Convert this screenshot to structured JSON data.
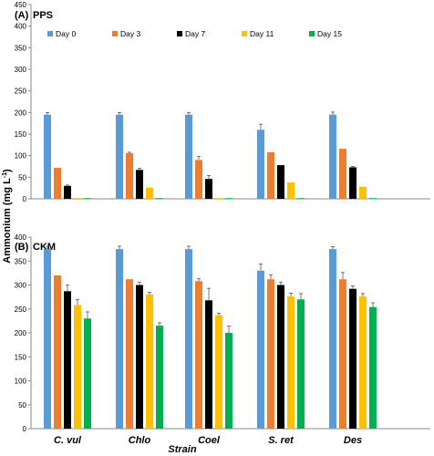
{
  "figure": {
    "ylabel": "Ammonium (mg L",
    "ylabel_sup": "-1",
    "ylabel_close": ")",
    "xlabel": "Strain"
  },
  "chart_data": [
    {
      "type": "bar",
      "panel_label": "(A)",
      "title": "PPS",
      "categories": [
        "C. vul",
        "Chlo",
        "Coel",
        "S. ret",
        "Des"
      ],
      "ylim": [
        0,
        450
      ],
      "yticks": [
        0,
        50,
        100,
        150,
        200,
        250,
        300,
        350,
        400,
        450
      ],
      "grid": false,
      "legend": "top",
      "series": [
        {
          "name": "Day 0",
          "color": "#5b9bd5",
          "values": [
            195,
            195,
            195,
            160,
            195
          ],
          "errors": [
            5,
            5,
            5,
            13,
            6
          ]
        },
        {
          "name": "Day 3",
          "color": "#ed7d31",
          "values": [
            72,
            106,
            90,
            108,
            116
          ],
          "errors": [
            0,
            2,
            8,
            0,
            0
          ]
        },
        {
          "name": "Day 7",
          "color": "#000000",
          "values": [
            30,
            67,
            46,
            78,
            73
          ],
          "errors": [
            2,
            4,
            8,
            0,
            2
          ]
        },
        {
          "name": "Day 11",
          "color": "#ffc000",
          "values": [
            0,
            26,
            0,
            38,
            28
          ],
          "errors": [
            0,
            0,
            0,
            0,
            0
          ]
        },
        {
          "name": "Day 15",
          "color": "#00b050",
          "values": [
            0,
            0,
            0,
            0,
            0
          ],
          "errors": [
            0,
            0,
            0,
            0,
            0
          ]
        }
      ]
    },
    {
      "type": "bar",
      "panel_label": "(B)",
      "title": "CKM",
      "categories": [
        "C. vul",
        "Chlo",
        "Coel",
        "S. ret",
        "Des"
      ],
      "ylim": [
        0,
        400
      ],
      "yticks": [
        0,
        50,
        100,
        150,
        200,
        250,
        300,
        350,
        400
      ],
      "grid": false,
      "legend": "none",
      "series": [
        {
          "name": "Day 0",
          "color": "#5b9bd5",
          "values": [
            375,
            375,
            375,
            330,
            375
          ],
          "errors": [
            6,
            6,
            6,
            14,
            5
          ]
        },
        {
          "name": "Day 3",
          "color": "#ed7d31",
          "values": [
            320,
            312,
            308,
            312,
            312
          ],
          "errors": [
            0,
            0,
            5,
            9,
            14
          ]
        },
        {
          "name": "Day 7",
          "color": "#000000",
          "values": [
            287,
            300,
            268,
            300,
            292
          ],
          "errors": [
            13,
            6,
            25,
            6,
            6
          ]
        },
        {
          "name": "Day 11",
          "color": "#ffc000",
          "values": [
            258,
            280,
            237,
            276,
            276
          ],
          "errors": [
            12,
            5,
            4,
            7,
            6
          ]
        },
        {
          "name": "Day 15",
          "color": "#00b050",
          "values": [
            230,
            215,
            200,
            270,
            254
          ],
          "errors": [
            14,
            6,
            14,
            12,
            9
          ]
        }
      ]
    }
  ]
}
